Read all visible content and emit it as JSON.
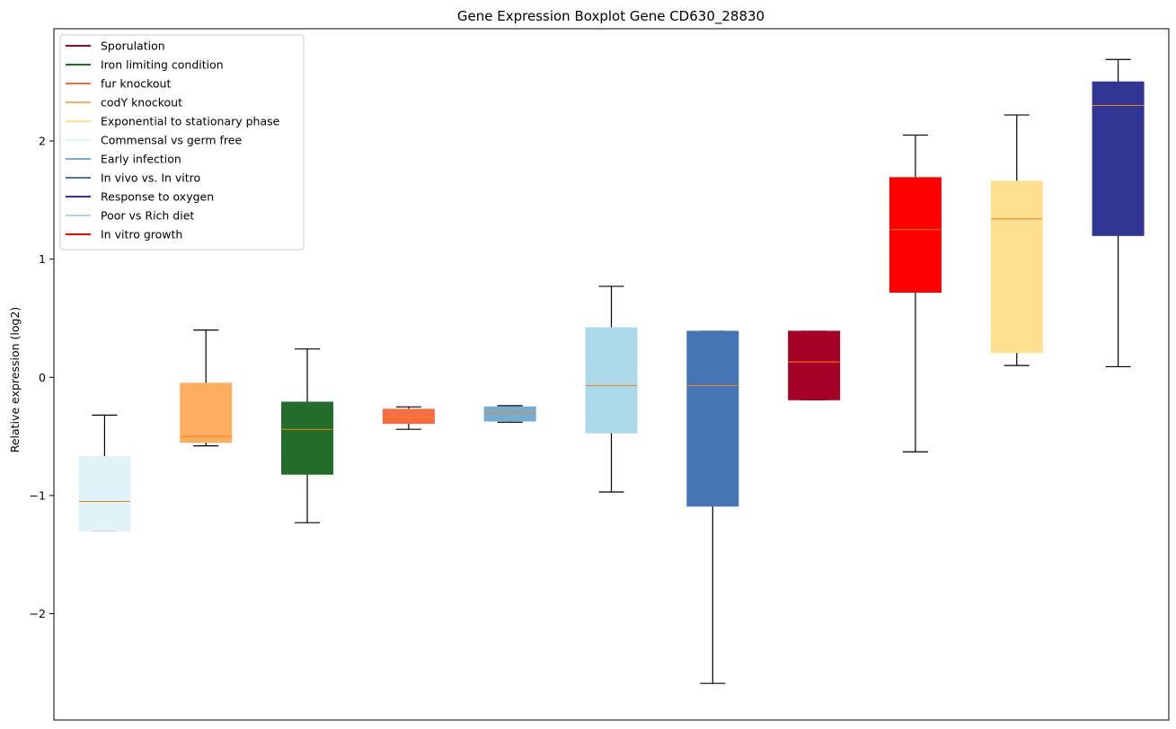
{
  "chart_data": {
    "type": "boxplot",
    "title": "Gene Expression Boxplot Gene CD630_28830",
    "xlabel": "",
    "ylabel": "Relative expression (log2)",
    "ylim": [
      -2.9,
      2.95
    ],
    "yticks": [
      -2,
      -1,
      0,
      1,
      2
    ],
    "ytick_labels": [
      "−2",
      "−1",
      "0",
      "1",
      "2"
    ],
    "median_color": "#ff7f0e",
    "whisker_color": "#000000",
    "legend": {
      "location": "top-left",
      "entries": [
        {
          "label": "Sporulation",
          "color": "#a50026"
        },
        {
          "label": "Iron limiting condition",
          "color": "#226c2c"
        },
        {
          "label": "fur knockout",
          "color": "#f46d43"
        },
        {
          "label": "codY knockout",
          "color": "#fdae61"
        },
        {
          "label": "Exponential to stationary phase",
          "color": "#fee090"
        },
        {
          "label": "Commensal vs germ free",
          "color": "#e0f3f8"
        },
        {
          "label": "Early infection",
          "color": "#74add1"
        },
        {
          "label": "In vivo vs. In vitro",
          "color": "#4575b4"
        },
        {
          "label": "Response to oxygen",
          "color": "#313695"
        },
        {
          "label": "Poor vs Rich diet",
          "color": "#abd9e9"
        },
        {
          "label": "In vitro growth",
          "color": "#ff0000"
        }
      ]
    },
    "boxes": [
      {
        "group": "Commensal vs germ free",
        "color": "#e0f3f8",
        "whislo": -1.3,
        "q1": -1.3,
        "med": -1.05,
        "q3": -0.67,
        "whishi": -0.32
      },
      {
        "group": "codY knockout",
        "color": "#fdae61",
        "whislo": -0.58,
        "q1": -0.55,
        "med": -0.5,
        "q3": -0.05,
        "whishi": 0.4
      },
      {
        "group": "Iron limiting condition",
        "color": "#226c2c",
        "whislo": -1.23,
        "q1": -0.82,
        "med": -0.44,
        "q3": -0.21,
        "whishi": 0.24
      },
      {
        "group": "fur knockout",
        "color": "#f46d43",
        "whislo": -0.44,
        "q1": -0.39,
        "med": -0.34,
        "q3": -0.27,
        "whishi": -0.25
      },
      {
        "group": "Early infection",
        "color": "#74add1",
        "whislo": -0.38,
        "q1": -0.37,
        "med": -0.3,
        "q3": -0.25,
        "whishi": -0.24
      },
      {
        "group": "Poor vs Rich diet",
        "color": "#abd9e9",
        "whislo": -0.97,
        "q1": -0.47,
        "med": -0.07,
        "q3": 0.42,
        "whishi": 0.77
      },
      {
        "group": "In vivo vs. In vitro",
        "color": "#4575b4",
        "whislo": -2.59,
        "q1": -1.09,
        "med": -0.07,
        "q3": 0.39,
        "whishi": 0.39
      },
      {
        "group": "Sporulation",
        "color": "#a50026",
        "whislo": -0.19,
        "q1": -0.19,
        "med": 0.13,
        "q3": 0.39,
        "whishi": 0.39
      },
      {
        "group": "In vitro growth",
        "color": "#ff0000",
        "whislo": -0.63,
        "q1": 0.72,
        "med": 1.25,
        "q3": 1.69,
        "whishi": 2.05
      },
      {
        "group": "Exponential to stationary phase",
        "color": "#fee090",
        "whislo": 0.1,
        "q1": 0.21,
        "med": 1.34,
        "q3": 1.66,
        "whishi": 2.22
      },
      {
        "group": "Response to oxygen",
        "color": "#313695",
        "whislo": 0.09,
        "q1": 1.2,
        "med": 2.3,
        "q3": 2.5,
        "whishi": 2.69
      }
    ]
  }
}
